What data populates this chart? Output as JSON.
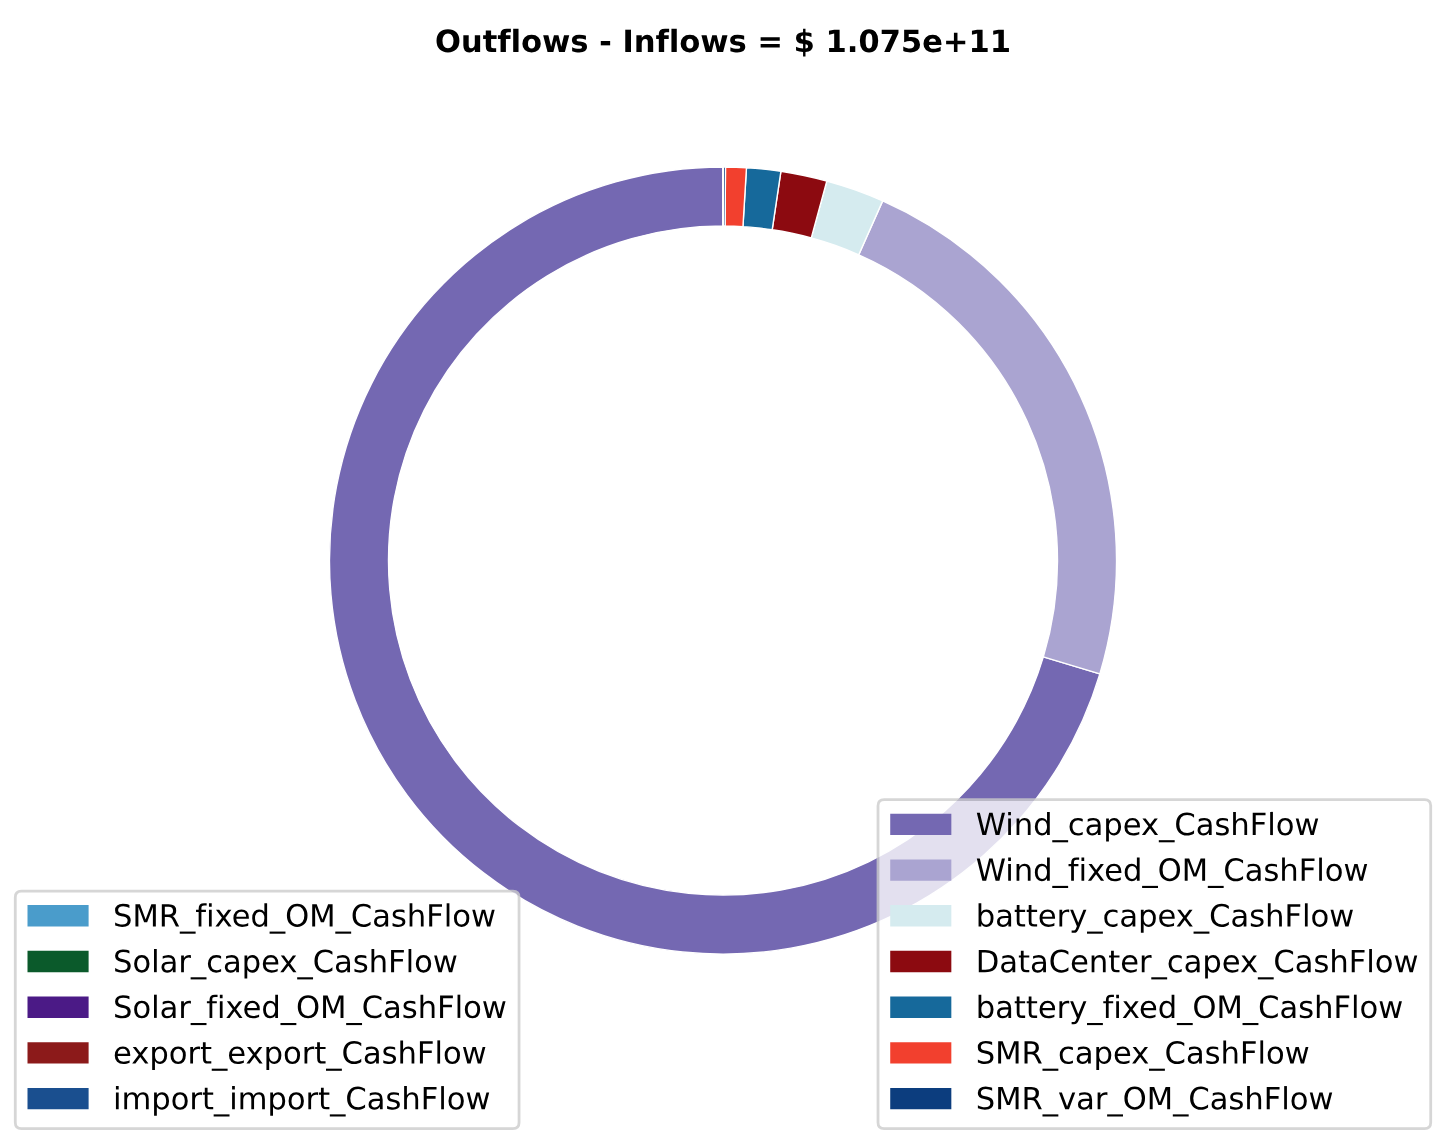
{
  "chart_data": {
    "type": "donut",
    "title": "Outflows - Inflows = $ 1.075e+11",
    "categories": [
      "Wind_capex_CashFlow",
      "Wind_fixed_OM_CashFlow",
      "battery_capex_CashFlow",
      "DataCenter_capex_CashFlow",
      "battery_fixed_OM_CashFlow",
      "SMR_capex_CashFlow",
      "SMR_var_OM_CashFlow",
      "SMR_fixed_OM_CashFlow",
      "Solar_capex_CashFlow",
      "Solar_fixed_OM_CashFlow",
      "export_export_CashFlow",
      "import_import_CashFlow"
    ],
    "values": [
      70.35,
      23.0,
      2.4,
      1.9,
      1.4,
      0.85,
      0.1,
      0,
      0,
      0,
      0,
      0
    ],
    "colors": [
      "#7468b2",
      "#aaa4d1",
      "#d5ebef",
      "#8c0a10",
      "#16699b",
      "#f2402e",
      "#0c3d7e",
      "#4a9ccb",
      "#0b5a2b",
      "#4b1a86",
      "#8c1a1a",
      "#1a4f8f"
    ],
    "legend": "bottom"
  }
}
